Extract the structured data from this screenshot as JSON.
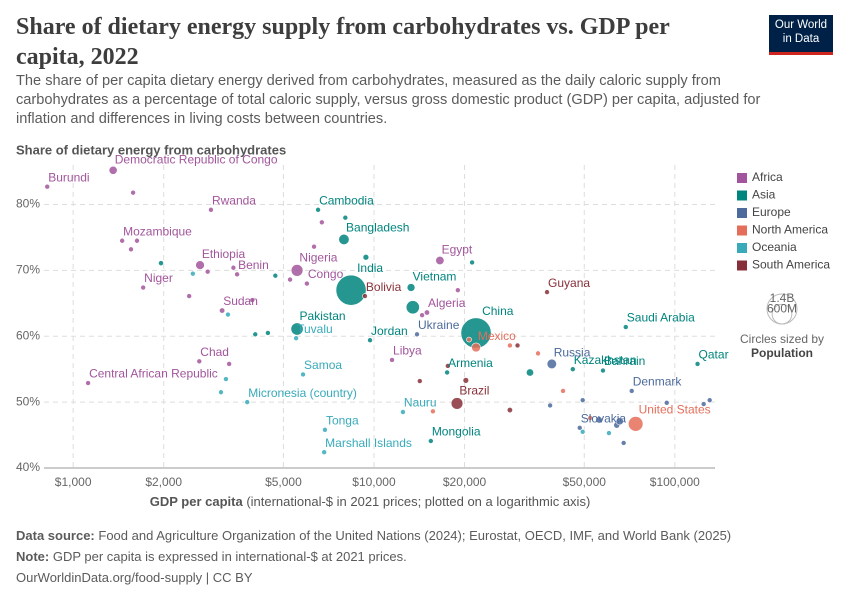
{
  "chart_data": {
    "type": "scatter",
    "title": "Share of dietary energy supply from carbohydrates vs. GDP per capita, 2022",
    "subtitle": "The share of per capita dietary energy derived from carbohydrates, measured as the daily caloric supply from carbohydrates as a percentage of total caloric supply, versus gross domestic product (GDP) per capita, adjusted for inflation and differences in living costs between countries.",
    "logo": [
      "Our World",
      "in Data"
    ],
    "y_label": "Share of dietary energy from carbohydrates",
    "x_label": {
      "main": "GDP per capita",
      "detail": "(international-$ in 2021 prices; plotted on a logarithmic axis)"
    },
    "xscale": "log",
    "xlim": [
      800,
      136000
    ],
    "xticks": [
      {
        "value": 1000,
        "label": "$1,000"
      },
      {
        "value": 2000,
        "label": "$2,000"
      },
      {
        "value": 5000,
        "label": "$5,000"
      },
      {
        "value": 10000,
        "label": "$10,000"
      },
      {
        "value": 20000,
        "label": "$20,000"
      },
      {
        "value": 50000,
        "label": "$50,000"
      },
      {
        "value": 100000,
        "label": "$100,000"
      }
    ],
    "ylim": [
      40,
      86
    ],
    "yticks": [
      {
        "value": 40,
        "label": "40%"
      },
      {
        "value": 50,
        "label": "50%"
      },
      {
        "value": 60,
        "label": "60%"
      },
      {
        "value": 70,
        "label": "70%"
      },
      {
        "value": 80,
        "label": "80%"
      }
    ],
    "grid": true,
    "legend_position": "right",
    "series": [
      {
        "name": "Africa",
        "color": "#a2559c",
        "x": [
          1358,
          820,
          2871,
          1455,
          2641,
          5550,
          1709,
          3507,
          5983,
          3127,
          16560,
          15000,
          2626,
          1121,
          11480,
          1582,
          1630,
          1557,
          2800,
          3410,
          2430,
          3940,
          6320,
          6710,
          5260,
          19000,
          14450,
          3300
        ],
        "values": [
          85.2,
          82.7,
          79.2,
          74.5,
          70.8,
          70.0,
          67.4,
          69.4,
          68.0,
          63.9,
          71.5,
          63.6,
          56.2,
          52.9,
          56.4,
          81.8,
          74.5,
          73.2,
          69.8,
          70.4,
          66.1,
          65.5,
          73.6,
          77.3,
          68.6,
          67.0,
          63.2,
          55.8
        ],
        "sizes": [
          105000000,
          13000000,
          14000000,
          33000000,
          123000000,
          219000000,
          26000000,
          13000000,
          6000000,
          47000000,
          111000000,
          45000000,
          18000000,
          5000000,
          7000000,
          12000000,
          28000000,
          20000000,
          30000000,
          16000000,
          28000000,
          30000000,
          16000000,
          19000000,
          28000000,
          12000000,
          37000000,
          20000000
        ],
        "labels": [
          "Democratic Republic of Congo",
          "Burundi",
          "Rwanda",
          "Mozambique",
          "Ethiopia",
          "Nigeria",
          "Niger",
          "Benin",
          "Congo",
          "Sudan",
          "Egypt",
          "Algeria",
          "Chad",
          "Central African Republic",
          "Libya",
          null,
          null,
          null,
          null,
          null,
          null,
          null,
          null,
          null,
          null,
          null,
          null,
          null
        ]
      },
      {
        "name": "Asia",
        "color": "#00847e",
        "x": [
          6518,
          7946,
          8390,
          13280,
          21840,
          5550,
          9700,
          68700,
          119000,
          57700,
          17500,
          45800,
          15450,
          13460,
          9400,
          21190,
          1959,
          4030,
          4440,
          4700,
          8030,
          33000
        ],
        "values": [
          79.2,
          74.7,
          67.0,
          67.4,
          60.5,
          61.1,
          59.4,
          61.4,
          55.8,
          54.8,
          54.5,
          55.0,
          44.1,
          64.4,
          72.0,
          71.2,
          71.1,
          60.3,
          60.5,
          69.2,
          78.0,
          54.5
        ],
        "sizes": [
          17000000,
          171000000,
          1417000000,
          98000000,
          1425000000,
          236000000,
          11000000,
          36000000,
          2700000,
          1500000,
          2800000,
          20000000,
          3400000,
          275000000,
          54000000,
          22000000,
          41000000,
          30000000,
          10000000,
          7000000,
          5000000,
          85000000
        ],
        "labels": [
          "Cambodia",
          "Bangladesh",
          "India",
          "Vietnam",
          "China",
          "Pakistan",
          "Jordan",
          "Saudi Arabia",
          "Qatar",
          "Bahrain",
          "Armenia",
          "Kazakhstan",
          "Mongolia",
          null,
          null,
          null,
          null,
          null,
          null,
          null,
          null,
          null
        ]
      },
      {
        "name": "Europe",
        "color": "#4c6a9c",
        "x": [
          13900,
          39000,
          71900,
          48300,
          64100,
          65600,
          56000,
          124700,
          130600,
          94000,
          49400,
          38500,
          67600
        ],
        "values": [
          60.3,
          55.8,
          51.7,
          46.1,
          46.5,
          47.1,
          47.3,
          49.7,
          50.3,
          49.9,
          50.3,
          49.5,
          43.8
        ],
        "sizes": [
          39000000,
          144000000,
          5900000,
          5400000,
          59000000,
          84000000,
          68000000,
          600000,
          5000000,
          5500000,
          10000000,
          38000000,
          400000
        ],
        "labels": [
          "Ukraine",
          "Russia",
          "Denmark",
          "Slovakia",
          null,
          null,
          null,
          null,
          null,
          null,
          null,
          null,
          null
        ]
      },
      {
        "name": "North America",
        "color": "#e56e5a",
        "x": [
          21840,
          74100,
          20700,
          28300,
          35100,
          52300,
          42500,
          15700
        ],
        "values": [
          58.3,
          46.7,
          59.5,
          58.6,
          57.4,
          47.6,
          51.7,
          48.6
        ],
        "sizes": [
          127000000,
          338000000,
          5000000,
          2000000,
          3000000,
          38000000,
          1000000,
          11000000
        ],
        "labels": [
          "Mexico",
          "United States",
          null,
          null,
          null,
          null,
          null,
          null
        ]
      },
      {
        "name": "Oceania",
        "color": "#38aaba",
        "x": [
          5510,
          5810,
          3790,
          6870,
          6830,
          12480,
          60400,
          49400,
          3270,
          3220,
          3100,
          2500
        ],
        "values": [
          59.7,
          54.2,
          50.0,
          45.8,
          42.4,
          48.5,
          45.3,
          45.5,
          63.3,
          53.5,
          51.5,
          69.5
        ],
        "sizes": [
          11000,
          220000,
          115000,
          107000,
          42000,
          12000,
          26000000,
          5100000,
          10000000,
          700000,
          300000,
          700000
        ],
        "labels": [
          "Tuvalu",
          "Samoa",
          "Micronesia (country)",
          "Tonga",
          "Marshall Islands",
          "Nauru",
          null,
          null,
          null,
          null,
          null,
          null
        ]
      },
      {
        "name": "South America",
        "color": "#883039",
        "x": [
          9330,
          37600,
          18880,
          28300,
          17600,
          20200,
          30000,
          14200
        ],
        "values": [
          66.1,
          66.7,
          49.8,
          48.8,
          55.5,
          53.3,
          58.6,
          53.2
        ],
        "sizes": [
          12000000,
          800000,
          215000000,
          46000000,
          34000000,
          52000000,
          19000000,
          18000000
        ],
        "labels": [
          "Bolivia",
          "Guyana",
          "Brazil",
          null,
          null,
          null,
          null,
          null
        ]
      }
    ],
    "size_legend": {
      "title": "Circles sized by",
      "variable": "Population",
      "sizes": [
        {
          "value": 1400000000,
          "label": "1.4B"
        },
        {
          "value": 600000000,
          "label": "600M"
        }
      ]
    },
    "source": {
      "label": "Data source:",
      "text": "Food and Agriculture Organization of the United Nations (2024); Eurostat, OECD, IMF, and World Bank (2025)"
    },
    "note": {
      "label": "Note:",
      "text": "GDP per capita is expressed in international-$ at 2021 prices."
    },
    "url": "OurWorldinData.org/food-supply | CC BY"
  }
}
